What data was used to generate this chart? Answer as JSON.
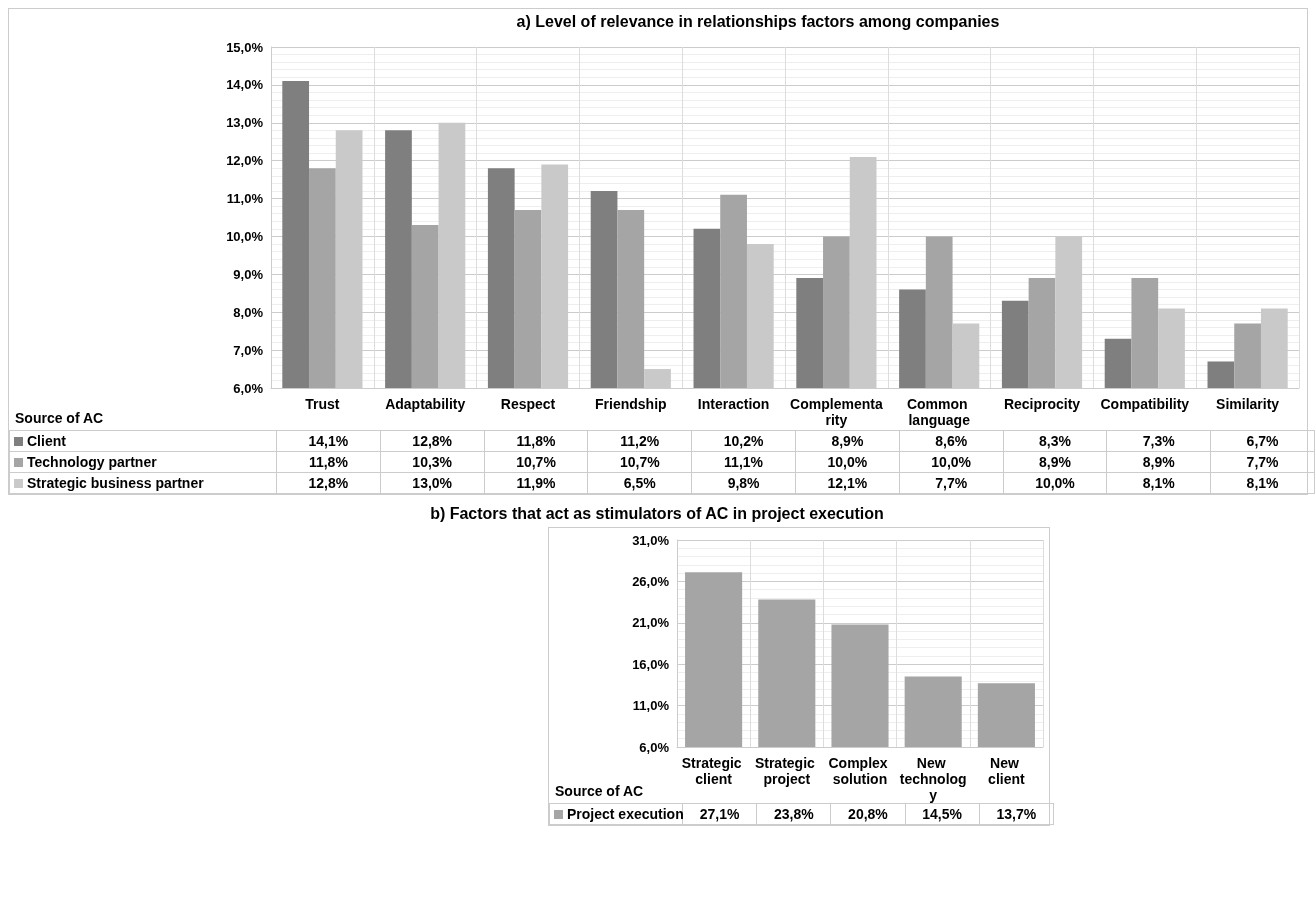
{
  "chart_data": [
    {
      "type": "bar",
      "title": "a) Level of relevance in relationships factors among companies",
      "legend_title": "Source of AC",
      "legend": "bottom",
      "grid": true,
      "categories": [
        "Trust",
        "Adaptability",
        "Respect",
        "Friendship",
        "Interaction",
        "Complementarity",
        "Common language",
        "Reciprocity",
        "Compatibility",
        "Similarity"
      ],
      "ylim": [
        6,
        15
      ],
      "yticks": [
        {
          "value": 6,
          "label": "6,0%"
        },
        {
          "value": 7,
          "label": "7,0%"
        },
        {
          "value": 8,
          "label": "8,0%"
        },
        {
          "value": 9,
          "label": "9,0%"
        },
        {
          "value": 10,
          "label": "10,0%"
        },
        {
          "value": 11,
          "label": "11,0%"
        },
        {
          "value": 12,
          "label": "12,0%"
        },
        {
          "value": 13,
          "label": "13,0%"
        },
        {
          "value": 14,
          "label": "14,0%"
        },
        {
          "value": 15,
          "label": "15,0%"
        }
      ],
      "series": [
        {
          "name": "Client",
          "color": "#7f7f7f",
          "values": [
            14.1,
            12.8,
            11.8,
            11.2,
            10.2,
            8.9,
            8.6,
            8.3,
            7.3,
            6.7
          ],
          "value_labels": [
            "14,1%",
            "12,8%",
            "11,8%",
            "11,2%",
            "10,2%",
            "8,9%",
            "8,6%",
            "8,3%",
            "7,3%",
            "6,7%"
          ]
        },
        {
          "name": "Technology partner",
          "color": "#a5a5a5",
          "values": [
            11.8,
            10.3,
            10.7,
            10.7,
            11.1,
            10.0,
            10.0,
            8.9,
            8.9,
            7.7
          ],
          "value_labels": [
            "11,8%",
            "10,3%",
            "10,7%",
            "10,7%",
            "11,1%",
            "10,0%",
            "10,0%",
            "8,9%",
            "8,9%",
            "7,7%"
          ]
        },
        {
          "name": "Strategic business partner",
          "color": "#c9c9c9",
          "values": [
            12.8,
            13.0,
            11.9,
            6.5,
            9.8,
            12.1,
            7.7,
            10.0,
            8.1,
            8.1
          ],
          "value_labels": [
            "12,8%",
            "13,0%",
            "11,9%",
            "6,5%",
            "9,8%",
            "12,1%",
            "7,7%",
            "10,0%",
            "8,1%",
            "8,1%"
          ]
        }
      ]
    },
    {
      "type": "bar",
      "title": "b) Factors that act as stimulators of AC in project execution",
      "legend_title": "Source of AC",
      "legend": "bottom",
      "grid": true,
      "categories": [
        "Strategic client",
        "Strategic project",
        "Complex solution",
        "New technology",
        "New client"
      ],
      "ylim": [
        6,
        31
      ],
      "yticks": [
        {
          "value": 6,
          "label": "6,0%"
        },
        {
          "value": 11,
          "label": "11,0%"
        },
        {
          "value": 16,
          "label": "16,0%"
        },
        {
          "value": 21,
          "label": "21,0%"
        },
        {
          "value": 26,
          "label": "26,0%"
        },
        {
          "value": 31,
          "label": "31,0%"
        }
      ],
      "series": [
        {
          "name": "Project execution",
          "color": "#a5a5a5",
          "values": [
            27.1,
            23.8,
            20.8,
            14.5,
            13.7
          ],
          "value_labels": [
            "27,1%",
            "23,8%",
            "20,8%",
            "14,5%",
            "13,7%"
          ]
        }
      ]
    }
  ]
}
